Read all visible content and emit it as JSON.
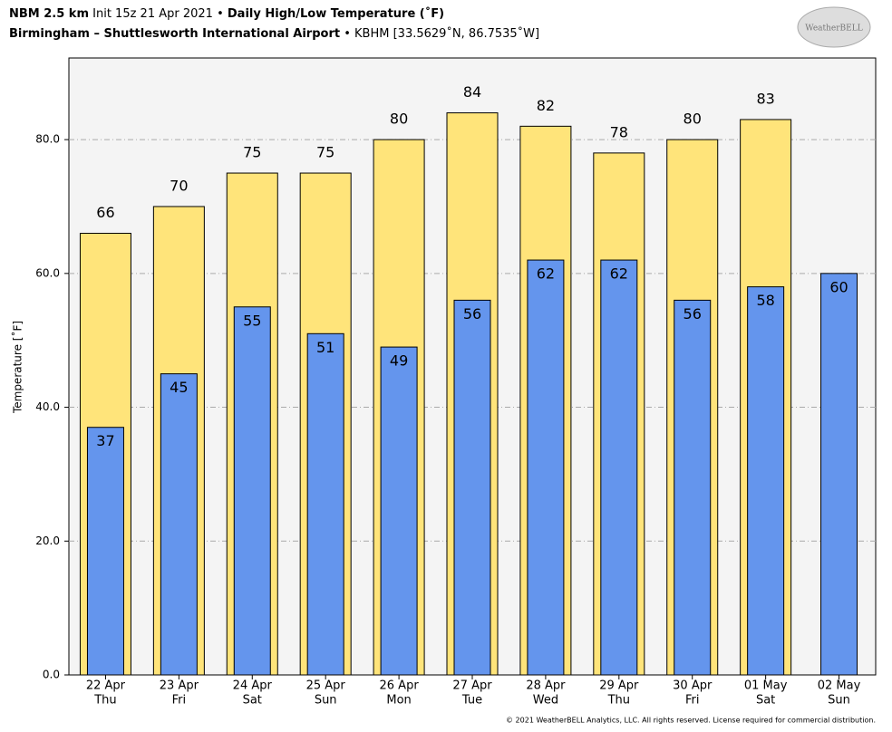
{
  "header": {
    "model": "NBM 2.5 km",
    "init": "Init 15z 21 Apr 2021",
    "separator": "•",
    "title": "Daily High/Low Temperature (˚F)",
    "location": "Birmingham – Shuttlesworth International Airport",
    "station": "• KBHM [33.5629˚N, 86.7535˚W]",
    "logo": "WeatherBELL"
  },
  "footer": "© 2021 WeatherBELL Analytics, LLC. All rights reserved. License required for commercial distribution.",
  "chart_data": {
    "type": "bar",
    "ylabel": "Temperature [˚F]",
    "categories": [
      "22 Apr",
      "23 Apr",
      "24 Apr",
      "25 Apr",
      "26 Apr",
      "27 Apr",
      "28 Apr",
      "29 Apr",
      "30 Apr",
      "01 May",
      "02 May"
    ],
    "weekdays": [
      "Thu",
      "Fri",
      "Sat",
      "Sun",
      "Mon",
      "Tue",
      "Wed",
      "Thu",
      "Fri",
      "Sat",
      "Sun"
    ],
    "series": [
      {
        "name": "High",
        "color": "#ffe47a",
        "values": [
          66,
          70,
          75,
          75,
          80,
          84,
          82,
          78,
          80,
          83,
          null
        ]
      },
      {
        "name": "Low",
        "color": "#6495ed",
        "values": [
          37,
          45,
          55,
          51,
          49,
          56,
          62,
          62,
          56,
          58,
          60
        ]
      }
    ],
    "ylim": [
      0,
      92.2
    ],
    "yticks": [
      {
        "value": 0,
        "label": "0.0"
      },
      {
        "value": 20,
        "label": "20.0"
      },
      {
        "value": 40,
        "label": "40.0"
      },
      {
        "value": 60,
        "label": "60.0"
      },
      {
        "value": 80,
        "label": "80.0"
      }
    ],
    "grid": true
  }
}
